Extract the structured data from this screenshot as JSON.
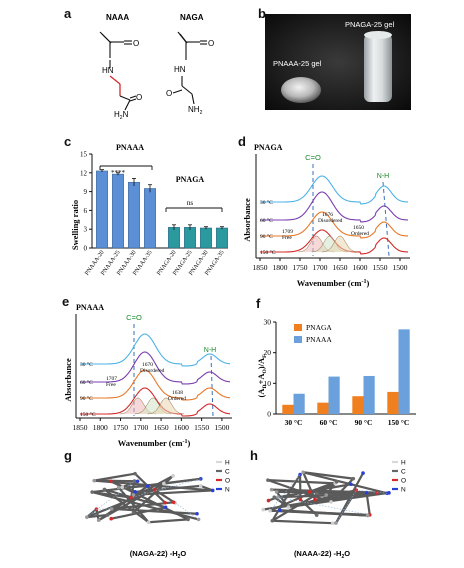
{
  "panel_a": {
    "label": "a",
    "naaa_name": "NAAA",
    "naga_name": "NAGA",
    "naaa_atoms": {
      "o1": "O",
      "hn": "HN",
      "o2": "O",
      "h2n": "H",
      "sub": "2",
      "n": "N"
    },
    "naga_atoms": {
      "o1": "O",
      "hn": "HN",
      "o2": "O",
      "n": "N",
      "h": "H",
      "sub": "2"
    }
  },
  "panel_b": {
    "label": "b",
    "left_gel": "PNAAA-25 gel",
    "right_gel": "PNAGA-25 gel"
  },
  "panel_c": {
    "label": "c",
    "group1_title": "PNAAA",
    "group2_title": "PNAGA",
    "sig1": "****",
    "sig2": "ns",
    "chart_data": {
      "type": "bar",
      "ylabel": "Swelling ratio",
      "ylim": [
        0,
        15
      ],
      "yticks": [
        "0",
        "3",
        "6",
        "9",
        "12",
        "15"
      ],
      "categories": [
        "PNAAA-20",
        "PNAAA-25",
        "PNAAA-30",
        "PNAAA-35",
        "PNAGA-20",
        "PNAGA-25",
        "PNAGA-30",
        "PNAGA-35"
      ],
      "values": [
        12.3,
        11.8,
        10.5,
        9.5,
        3.3,
        3.3,
        3.2,
        3.2
      ],
      "errors": [
        0.2,
        0.2,
        0.6,
        0.6,
        0.4,
        0.4,
        0.2,
        0.2
      ],
      "colors": [
        "#5b8fd6",
        "#5b8fd6",
        "#5b8fd6",
        "#5b8fd6",
        "#2a9a9e",
        "#2a9a9e",
        "#2a9a9e",
        "#2a9a9e"
      ]
    }
  },
  "panel_d": {
    "label": "d",
    "title": "PNAGA",
    "co_label": "C=O",
    "nh_label": "N-H",
    "ylabel": "Absorbance",
    "xlabel": "Wavenumber (cm",
    "xlabel_sup": "-1",
    "xlabel_end": ")",
    "temps": [
      "30 °C",
      "60 °C",
      "90 °C",
      "150 °C"
    ],
    "peak_labels": [
      "1709",
      "Free",
      "1676",
      "Disordered",
      "1650",
      "Ordered"
    ],
    "chart_data": {
      "type": "line",
      "xlim": [
        1850,
        1480
      ],
      "xticks": [
        "1850",
        "1800",
        "1750",
        "1700",
        "1650",
        "1600",
        "1550",
        "1500"
      ],
      "series": [
        {
          "name": "30 °C",
          "color": "#4fb3e8"
        },
        {
          "name": "60 °C",
          "color": "#7a3fb0"
        },
        {
          "name": "90 °C",
          "color": "#e8782a"
        },
        {
          "name": "150 °C",
          "color": "#d42a2a"
        }
      ]
    }
  },
  "panel_e": {
    "label": "e",
    "title": "PNAAA",
    "co_label": "C=O",
    "nh_label": "N-H",
    "ylabel": "Absorbance",
    "xlabel": "Wavenumber (cm",
    "xlabel_sup": "-1",
    "xlabel_end": ")",
    "temps": [
      "30 °C",
      "60 °C",
      "90 °C",
      "150 °C"
    ],
    "peak_labels": [
      "1707",
      "Free",
      "1670",
      "Disordered",
      "1638",
      "Ordered"
    ],
    "chart_data": {
      "type": "line",
      "xlim": [
        1850,
        1480
      ],
      "xticks": [
        "1850",
        "1800",
        "1750",
        "1700",
        "1650",
        "1600",
        "1550",
        "1500"
      ],
      "series": [
        {
          "name": "30 °C",
          "color": "#4fb3e8"
        },
        {
          "name": "60 °C",
          "color": "#7a3fb0"
        },
        {
          "name": "90 °C",
          "color": "#e8782a"
        },
        {
          "name": "150 °C",
          "color": "#d42a2a"
        }
      ]
    }
  },
  "panel_f": {
    "label": "f",
    "ylabel": "(A",
    "chart_data": {
      "type": "bar",
      "categories": [
        "30 °C",
        "60 °C",
        "90 °C",
        "150 °C"
      ],
      "ylim": [
        0,
        30
      ],
      "yticks": [
        "0",
        "10",
        "20",
        "30"
      ],
      "series": [
        {
          "name": "PNAGA",
          "color": "#f07f1f",
          "values": [
            3.0,
            3.7,
            5.8,
            7.2
          ]
        },
        {
          "name": "PNAAA",
          "color": "#6aa0dc",
          "values": [
            6.6,
            12.2,
            12.4,
            27.6
          ]
        }
      ]
    }
  },
  "panel_g": {
    "label": "g",
    "caption": "(NAGA-22) -H",
    "caption_sub": "2",
    "caption_end": "O",
    "legend": [
      "H",
      "C",
      "O",
      "N"
    ]
  },
  "panel_h": {
    "label": "h",
    "caption": "(NAAA-22) -H",
    "caption_sub": "2",
    "caption_end": "O",
    "legend": [
      "H",
      "C",
      "O",
      "N"
    ]
  },
  "legend_colors": {
    "H": "#d8d8d8",
    "C": "#666666",
    "O": "#d42a2a",
    "N": "#2a3fd4"
  }
}
